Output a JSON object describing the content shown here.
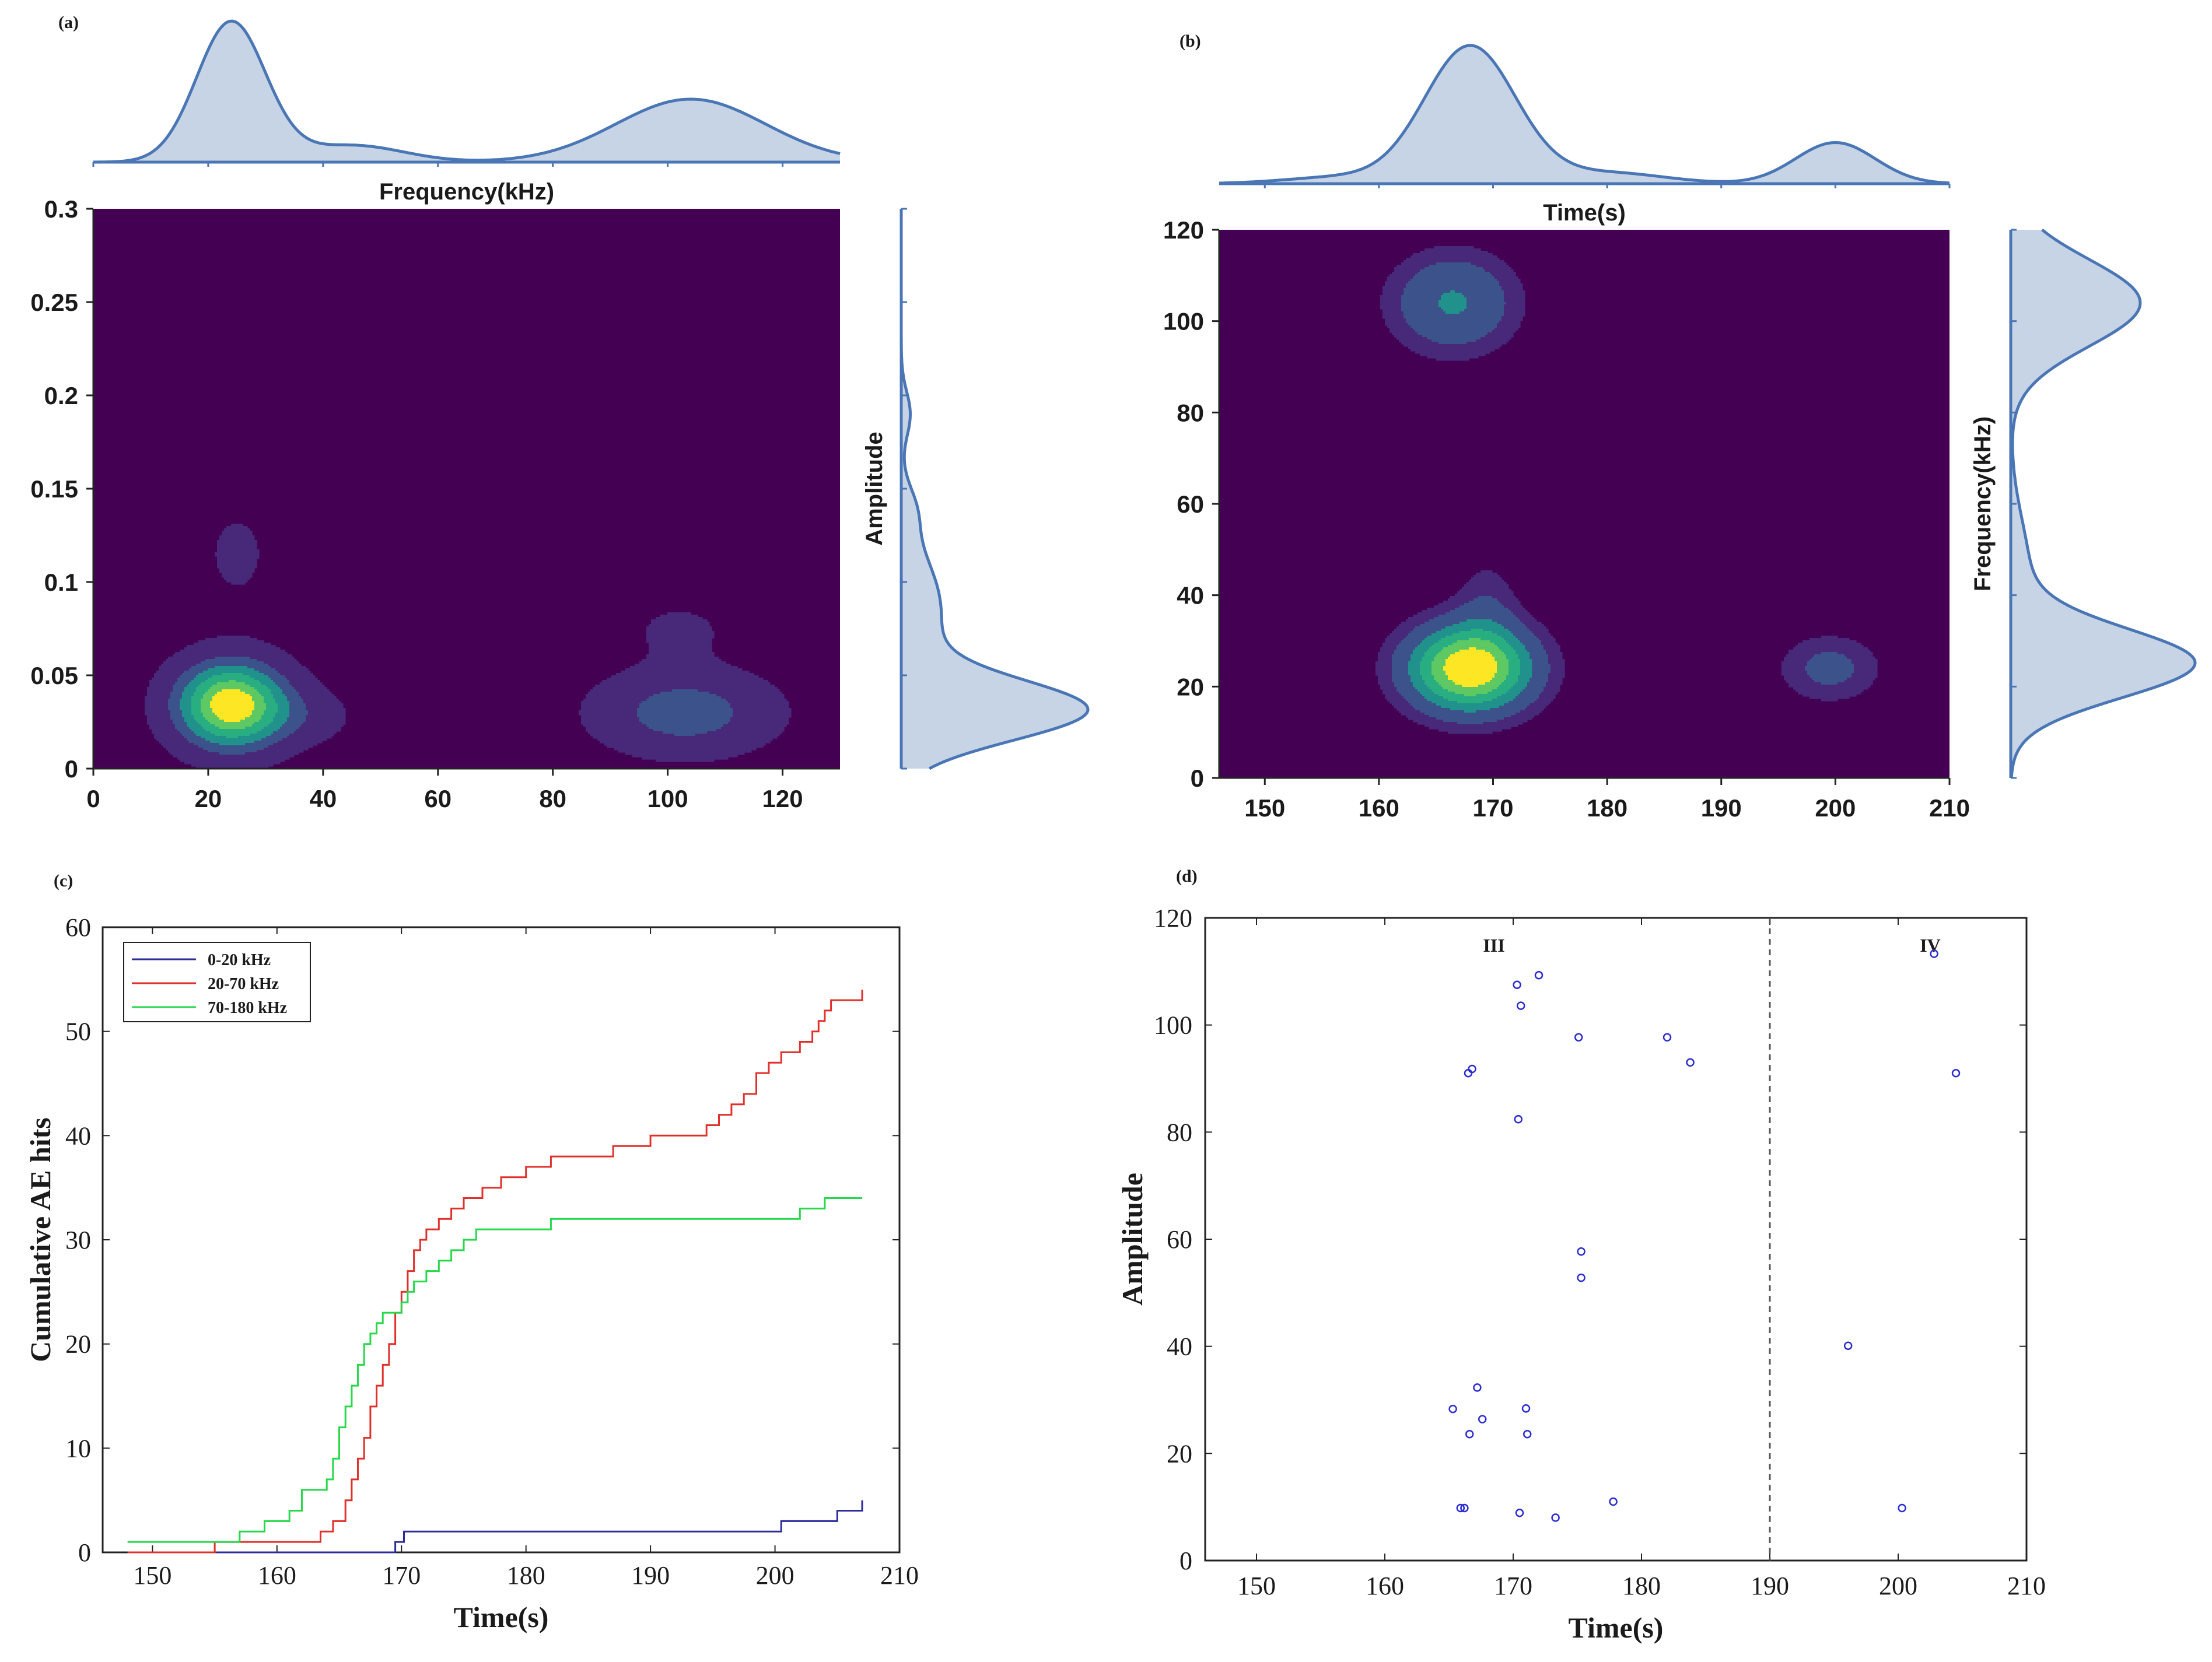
{
  "colors": {
    "viridis_bg": "#440154",
    "viridis_levels": [
      "#482878",
      "#3b528b",
      "#2c728e",
      "#21918c",
      "#28ae80",
      "#5ec962",
      "#addc30",
      "#fde725"
    ],
    "marginal_fill": "#c6d4e6",
    "marginal_line": "#4a76b5",
    "series_0_20": "#2b2b9c",
    "series_20_70": "#e0302b",
    "series_70_180": "#26d84a",
    "scatter": "#2b2bd0"
  },
  "chart_data": [
    {
      "id": "a",
      "panel_label": "(a)",
      "type": "heatmap",
      "subtype": "kde-contour-with-marginals",
      "xlabel": "Frequency(kHz)",
      "ylabel": "Amplitude",
      "xlim": [
        0,
        130
      ],
      "ylim": [
        0,
        0.3
      ],
      "xticks": [
        0,
        20,
        40,
        60,
        80,
        100,
        120
      ],
      "yticks": [
        0,
        0.05,
        0.1,
        0.15,
        0.2,
        0.25,
        0.3
      ],
      "yticklabels": [
        "0",
        "0.05",
        "0.1",
        "0.15",
        "0.2",
        "0.25",
        "0.3"
      ],
      "blobs": [
        {
          "x": 24,
          "y": 0.034,
          "sx": 7,
          "sy": 0.017,
          "w": 1.0
        },
        {
          "x": 25,
          "y": 0.115,
          "sx": 4.5,
          "sy": 0.02,
          "w": 0.14
        },
        {
          "x": 38,
          "y": 0.028,
          "sx": 6,
          "sy": 0.011,
          "w": 0.14
        },
        {
          "x": 103,
          "y": 0.03,
          "sx": 11,
          "sy": 0.016,
          "w": 0.4
        },
        {
          "x": 102,
          "y": 0.075,
          "sx": 7,
          "sy": 0.012,
          "w": 0.13
        }
      ],
      "levels": [
        0.1,
        0.3,
        0.45,
        0.6,
        0.75,
        0.88
      ],
      "level_colors": [
        1,
        2,
        4,
        5,
        6,
        8
      ],
      "top_marginal": [
        {
          "x": 24,
          "s": 6,
          "w": 1.0
        },
        {
          "x": 45,
          "s": 9,
          "w": 0.12
        },
        {
          "x": 104,
          "s": 13,
          "w": 0.45
        }
      ],
      "right_marginal": [
        {
          "y": 0.031,
          "s": 0.016,
          "w": 1.0
        },
        {
          "y": 0.085,
          "s": 0.03,
          "w": 0.22
        },
        {
          "y": 0.14,
          "s": 0.012,
          "w": 0.05
        },
        {
          "y": 0.19,
          "s": 0.012,
          "w": 0.05
        }
      ]
    },
    {
      "id": "b",
      "panel_label": "(b)",
      "type": "heatmap",
      "subtype": "kde-contour-with-marginals",
      "xlabel": "Time(s)",
      "ylabel": "Frequency(kHz)",
      "xlim": [
        146,
        210
      ],
      "ylim": [
        0,
        120
      ],
      "xticks": [
        150,
        160,
        170,
        180,
        190,
        200,
        210
      ],
      "yticks": [
        0,
        20,
        40,
        60,
        80,
        100,
        120
      ],
      "yticklabels": [
        "0",
        "20",
        "40",
        "60",
        "80",
        "100",
        "120"
      ],
      "blobs": [
        {
          "x": 168,
          "y": 24,
          "sx": 4,
          "sy": 7,
          "w": 1.0
        },
        {
          "x": 169.5,
          "y": 40,
          "sx": 2,
          "sy": 7,
          "w": 0.15
        },
        {
          "x": 166.5,
          "y": 104,
          "sx": 4,
          "sy": 8,
          "w": 0.42
        },
        {
          "x": 199.5,
          "y": 24,
          "sx": 3.3,
          "sy": 5.5,
          "w": 0.27
        }
      ],
      "levels": [
        0.12,
        0.22,
        0.4,
        0.55,
        0.7,
        0.85
      ],
      "level_colors": [
        1,
        2,
        4,
        5,
        6,
        8
      ],
      "top_marginal": [
        {
          "x": 168,
          "s": 4,
          "w": 1.0
        },
        {
          "x": 180,
          "s": 5,
          "w": 0.08
        },
        {
          "x": 157,
          "s": 5,
          "w": 0.05
        },
        {
          "x": 200,
          "s": 3.5,
          "w": 0.3
        }
      ],
      "right_marginal": [
        {
          "y": 25,
          "s": 7.5,
          "w": 1.0
        },
        {
          "y": 104,
          "s": 9.5,
          "w": 0.72
        },
        {
          "y": 45,
          "s": 12,
          "w": 0.1
        }
      ]
    },
    {
      "id": "c",
      "panel_label": "(c)",
      "type": "line",
      "xlabel": "Time(s)",
      "ylabel": "Cumulative AE hits",
      "xlim": [
        146,
        210
      ],
      "ylim": [
        0,
        60
      ],
      "xticks": [
        150,
        160,
        170,
        180,
        190,
        200,
        210
      ],
      "yticks": [
        0,
        10,
        20,
        30,
        40,
        50,
        60
      ],
      "legend_position": "top-left",
      "series": [
        {
          "name": "0-20 kHz",
          "color_key": "series_0_20",
          "x": [
            148,
            169.2,
            169.5,
            170,
            170.2,
            193.5,
            200.5,
            202,
            205,
            207
          ],
          "y": [
            0,
            0,
            1,
            1,
            2,
            2,
            3,
            3,
            4,
            5
          ]
        },
        {
          "name": "20-70 kHz",
          "color_key": "series_20_70",
          "x": [
            148,
            155,
            162,
            163.5,
            164.5,
            165.5,
            166,
            166.5,
            167,
            167.5,
            168,
            168.5,
            169,
            169.5,
            170,
            170.5,
            171,
            171.5,
            172,
            173,
            174,
            175,
            176.5,
            178,
            180,
            182,
            184,
            187,
            190,
            193.5,
            194.5,
            195.5,
            196.5,
            197.5,
            198.5,
            199.5,
            200.5,
            202,
            203,
            203.5,
            204,
            204.5,
            207
          ],
          "y": [
            0,
            1,
            1,
            2,
            3,
            5,
            7,
            9,
            11,
            14,
            16,
            18,
            20,
            23,
            25,
            27,
            29,
            30,
            31,
            32,
            33,
            34,
            35,
            36,
            37,
            38,
            38,
            39,
            40,
            40,
            41,
            42,
            43,
            44,
            46,
            47,
            48,
            49,
            50,
            51,
            52,
            53,
            54
          ]
        },
        {
          "name": "70-180 kHz",
          "color_key": "series_70_180",
          "x": [
            148,
            155,
            157,
            159,
            161,
            162,
            164,
            164.5,
            165,
            165.5,
            166,
            166.5,
            167,
            167.5,
            168,
            168.5,
            169,
            169.5,
            170,
            170.5,
            171,
            172,
            173,
            174,
            175,
            176,
            178,
            180,
            182,
            184,
            186,
            188,
            190,
            192,
            194,
            196,
            198,
            200,
            202,
            203,
            204,
            207
          ],
          "y": [
            1,
            1,
            2,
            3,
            4,
            6,
            7,
            9,
            12,
            14,
            16,
            18,
            20,
            21,
            22,
            23,
            23,
            23,
            24,
            25,
            26,
            27,
            28,
            29,
            30,
            31,
            31,
            31,
            32,
            32,
            32,
            32,
            32,
            32,
            32,
            32,
            32,
            32,
            33,
            33,
            34,
            34
          ]
        }
      ]
    },
    {
      "id": "d",
      "panel_label": "(d)",
      "type": "scatter",
      "xlabel": "Time(s)",
      "ylabel": "Amplitude",
      "xlim": [
        146,
        210
      ],
      "ylim": [
        0,
        120
      ],
      "xticks": [
        150,
        160,
        170,
        180,
        190,
        200,
        210
      ],
      "yticks": [
        0,
        20,
        40,
        60,
        80,
        100,
        120
      ],
      "divider_x": 190,
      "region_labels": [
        {
          "text": "III",
          "x": 168.5,
          "y": 115
        },
        {
          "text": "IV",
          "x": 202.5,
          "y": 115
        }
      ],
      "points": [
        {
          "x": 165.3,
          "y": 28.3
        },
        {
          "x": 165.9,
          "y": 9.8
        },
        {
          "x": 166.2,
          "y": 9.8
        },
        {
          "x": 166.5,
          "y": 91
        },
        {
          "x": 166.8,
          "y": 91.8
        },
        {
          "x": 166.6,
          "y": 23.6
        },
        {
          "x": 167.2,
          "y": 32.3
        },
        {
          "x": 167.6,
          "y": 26.4
        },
        {
          "x": 170.3,
          "y": 107.5
        },
        {
          "x": 170.6,
          "y": 103.6
        },
        {
          "x": 170.4,
          "y": 82.4
        },
        {
          "x": 170.5,
          "y": 8.9
        },
        {
          "x": 171.0,
          "y": 28.4
        },
        {
          "x": 171.1,
          "y": 23.6
        },
        {
          "x": 172.0,
          "y": 109.3
        },
        {
          "x": 173.3,
          "y": 8.0
        },
        {
          "x": 175.1,
          "y": 97.7
        },
        {
          "x": 175.3,
          "y": 57.7
        },
        {
          "x": 175.3,
          "y": 52.8
        },
        {
          "x": 177.8,
          "y": 11.0
        },
        {
          "x": 182.0,
          "y": 97.7
        },
        {
          "x": 183.8,
          "y": 93.0
        },
        {
          "x": 196.1,
          "y": 40.1
        },
        {
          "x": 200.3,
          "y": 9.8
        },
        {
          "x": 202.8,
          "y": 113.3
        },
        {
          "x": 204.5,
          "y": 91.0
        }
      ]
    }
  ]
}
